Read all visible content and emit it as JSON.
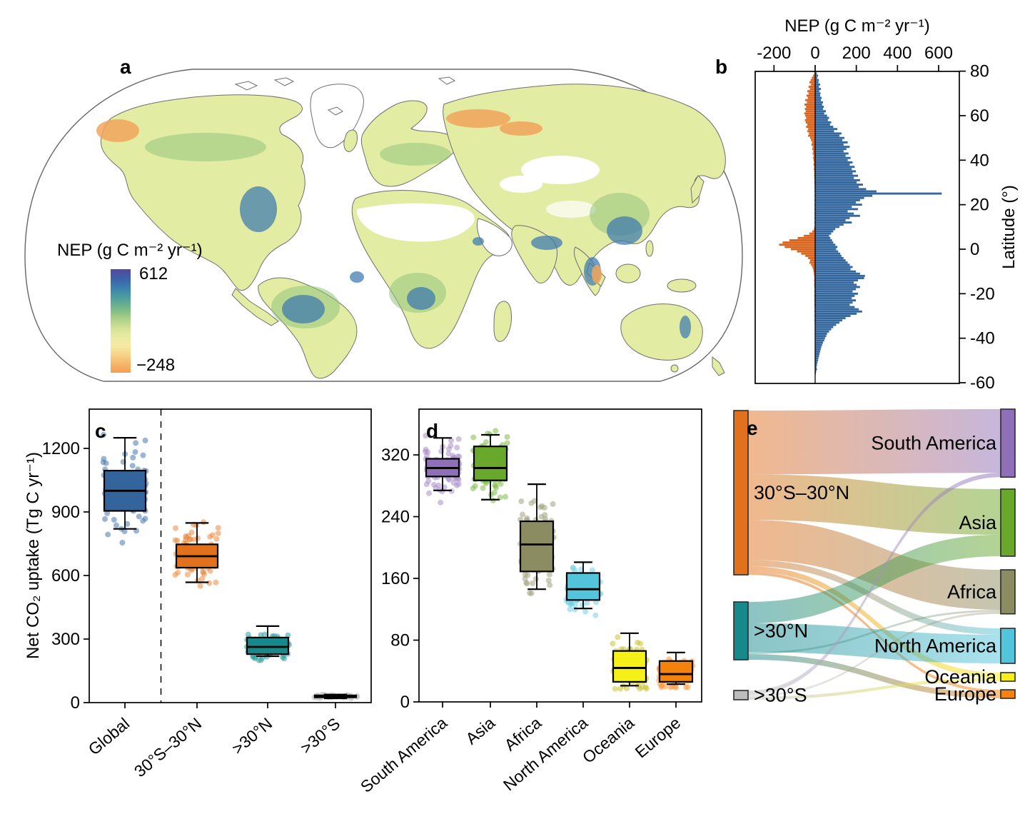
{
  "panel_letters": {
    "a": "a",
    "b": "b",
    "c": "c",
    "d": "d",
    "e": "e"
  },
  "chart_data": [
    {
      "id": "a",
      "type": "map",
      "legend": {
        "title": "NEP (g C m⁻² yr⁻¹)",
        "max_label": "612",
        "min_label": "−248",
        "gradient_top_to_bottom": [
          "#55489d",
          "#3e5fa9",
          "#3a7cb0",
          "#4797a4",
          "#63ad90",
          "#8ac183",
          "#b4d48b",
          "#d8e49a",
          "#eceba4",
          "#f5e8a2",
          "#f6d186",
          "#f6b568",
          "#f49e55"
        ]
      }
    },
    {
      "id": "b",
      "type": "bar",
      "title": "NEP (g C m⁻² yr⁻¹)",
      "ylabel": "Latitude (°)",
      "xticks": [
        "-200",
        "0",
        "200",
        "400",
        "600"
      ],
      "xtick_values": [
        -200,
        0,
        200,
        400,
        600
      ],
      "yticks": [
        "80",
        "60",
        "40",
        "20",
        "0",
        "-20",
        "-40",
        "-60"
      ],
      "ytick_values": [
        80,
        60,
        40,
        20,
        0,
        -20,
        -40,
        -60
      ],
      "xlim": [
        -291,
        700
      ],
      "ylim": [
        -60,
        80
      ],
      "positive_color": "#33679e",
      "negative_color": "#d9641e",
      "profile": [
        [
          80,
          0,
          4
        ],
        [
          79,
          -4,
          8
        ],
        [
          78,
          -10,
          14
        ],
        [
          77,
          -16,
          10
        ],
        [
          76,
          -22,
          18
        ],
        [
          75,
          -28,
          16
        ],
        [
          74,
          -20,
          24
        ],
        [
          73,
          -32,
          18
        ],
        [
          72,
          -26,
          28
        ],
        [
          71,
          -38,
          20
        ],
        [
          70,
          -32,
          26
        ],
        [
          69,
          -42,
          24
        ],
        [
          68,
          -36,
          32
        ],
        [
          67,
          -48,
          28
        ],
        [
          66,
          -40,
          38
        ],
        [
          65,
          -52,
          34
        ],
        [
          64,
          -44,
          42
        ],
        [
          63,
          -50,
          38
        ],
        [
          62,
          -46,
          52
        ],
        [
          61,
          -53,
          44
        ],
        [
          60,
          -48,
          58
        ],
        [
          59,
          -44,
          68
        ],
        [
          58,
          -50,
          62
        ],
        [
          57,
          -46,
          78
        ],
        [
          56,
          -38,
          72
        ],
        [
          55,
          -44,
          88
        ],
        [
          54,
          -34,
          108
        ],
        [
          53,
          -38,
          92
        ],
        [
          52,
          -30,
          128
        ],
        [
          51,
          -34,
          118
        ],
        [
          50,
          -24,
          142
        ],
        [
          49,
          -20,
          132
        ],
        [
          48,
          -15,
          158
        ],
        [
          47,
          -18,
          138
        ],
        [
          46,
          -12,
          168
        ],
        [
          45,
          -14,
          152
        ],
        [
          44,
          -10,
          138
        ],
        [
          43,
          -12,
          162
        ],
        [
          42,
          -8,
          148
        ],
        [
          41,
          -10,
          172
        ],
        [
          40,
          -8,
          158
        ],
        [
          39,
          -6,
          182
        ],
        [
          38,
          -8,
          168
        ],
        [
          37,
          -5,
          192
        ],
        [
          36,
          -6,
          178
        ],
        [
          35,
          -5,
          198
        ],
        [
          34,
          -4,
          182
        ],
        [
          33,
          -5,
          208
        ],
        [
          32,
          -4,
          188
        ],
        [
          31,
          -3,
          218
        ],
        [
          30,
          -4,
          202
        ],
        [
          29,
          -3,
          232
        ],
        [
          28,
          -3,
          212
        ],
        [
          27,
          -2,
          248
        ],
        [
          26,
          -3,
          298
        ],
        [
          25,
          -2,
          615
        ],
        [
          24,
          -3,
          278
        ],
        [
          23,
          -2,
          238
        ],
        [
          22,
          -3,
          218
        ],
        [
          21,
          -2,
          198
        ],
        [
          20,
          -3,
          228
        ],
        [
          19,
          -2,
          178
        ],
        [
          18,
          -3,
          208
        ],
        [
          17,
          -2,
          158
        ],
        [
          16,
          -3,
          188
        ],
        [
          15,
          -2,
          218
        ],
        [
          14,
          -3,
          168
        ],
        [
          13,
          -2,
          148
        ],
        [
          12,
          -3,
          178
        ],
        [
          11,
          -2,
          138
        ],
        [
          10,
          -4,
          118
        ],
        [
          9,
          -6,
          98
        ],
        [
          8,
          -14,
          88
        ],
        [
          7,
          -28,
          78
        ],
        [
          6,
          -55,
          68
        ],
        [
          5,
          -85,
          74
        ],
        [
          4,
          -125,
          82
        ],
        [
          3,
          -158,
          88
        ],
        [
          2,
          -175,
          98
        ],
        [
          1,
          -148,
          108
        ],
        [
          0,
          -118,
          102
        ],
        [
          -1,
          -88,
          112
        ],
        [
          -2,
          -68,
          122
        ],
        [
          -3,
          -48,
          128
        ],
        [
          -4,
          -34,
          138
        ],
        [
          -5,
          -24,
          148
        ],
        [
          -6,
          -28,
          158
        ],
        [
          -7,
          -20,
          168
        ],
        [
          -8,
          -14,
          182
        ],
        [
          -9,
          -10,
          172
        ],
        [
          -10,
          -8,
          198
        ],
        [
          -11,
          -6,
          218
        ],
        [
          -12,
          -5,
          242
        ],
        [
          -13,
          -4,
          238
        ],
        [
          -14,
          -5,
          208
        ],
        [
          -15,
          -4,
          188
        ],
        [
          -16,
          -5,
          202
        ],
        [
          -17,
          -4,
          218
        ],
        [
          -18,
          -3,
          198
        ],
        [
          -19,
          -4,
          182
        ],
        [
          -20,
          -3,
          208
        ],
        [
          -21,
          -4,
          192
        ],
        [
          -22,
          -3,
          178
        ],
        [
          -23,
          -4,
          198
        ],
        [
          -24,
          -3,
          182
        ],
        [
          -25,
          -4,
          168
        ],
        [
          -26,
          -3,
          192
        ],
        [
          -27,
          -2,
          212
        ],
        [
          -28,
          -3,
          228
        ],
        [
          -29,
          -2,
          202
        ],
        [
          -30,
          -3,
          172
        ],
        [
          -31,
          -2,
          148
        ],
        [
          -32,
          -3,
          132
        ],
        [
          -33,
          -2,
          118
        ],
        [
          -34,
          -2,
          102
        ],
        [
          -35,
          -1,
          88
        ],
        [
          -36,
          -2,
          78
        ],
        [
          -37,
          -1,
          68
        ],
        [
          -38,
          -2,
          58
        ],
        [
          -39,
          -1,
          54
        ],
        [
          -40,
          -1,
          48
        ],
        [
          -41,
          -1,
          44
        ],
        [
          -42,
          -1,
          38
        ],
        [
          -43,
          -1,
          34
        ],
        [
          -44,
          -1,
          30
        ],
        [
          -45,
          -1,
          27
        ],
        [
          -46,
          -1,
          24
        ],
        [
          -47,
          -1,
          21
        ],
        [
          -48,
          -1,
          19
        ],
        [
          -49,
          -1,
          16
        ],
        [
          -50,
          -1,
          14
        ],
        [
          -51,
          -1,
          11
        ],
        [
          -52,
          -1,
          9
        ],
        [
          -53,
          -1,
          7
        ],
        [
          -54,
          -1,
          9
        ],
        [
          -55,
          -1,
          5
        ],
        [
          -56,
          0,
          3
        ]
      ]
    },
    {
      "id": "c",
      "type": "box",
      "ylabel": "Net CO₂ uptake (Tg C yr⁻¹)",
      "yticks": [
        "0",
        "300",
        "600",
        "900",
        "1200"
      ],
      "ytick_values": [
        0,
        300,
        600,
        900,
        1200
      ],
      "ylim": [
        0,
        1385
      ],
      "categories": [
        "Global",
        "30°S–30°N",
        ">30°N",
        ">30°S"
      ],
      "divider_after_index": 0,
      "series": [
        {
          "name": "Global",
          "color": "#33659c",
          "point_color": "#4878ae",
          "whislo": 820,
          "q1": 905,
          "med": 1000,
          "q3": 1095,
          "whishi": 1250,
          "pt_lo": 755,
          "pt_hi": 1290,
          "n": 85
        },
        {
          "name": "30°S–30°N",
          "color": "#e2711d",
          "point_color": "#e88a42",
          "whislo": 568,
          "q1": 637,
          "med": 691,
          "q3": 747,
          "whishi": 848,
          "pt_lo": 532,
          "pt_hi": 872,
          "n": 85
        },
        {
          "name": ">30°N",
          "color": "#17898b",
          "point_color": "#2f9fa0",
          "whislo": 219,
          "q1": 229,
          "med": 263,
          "q3": 307,
          "whishi": 361,
          "pt_lo": 200,
          "pt_hi": 388,
          "n": 85
        },
        {
          "name": ">30°S",
          "color": "#000000",
          "point_color": "#c4c4c4",
          "whislo": 20,
          "q1": 25,
          "med": 29,
          "q3": 34,
          "whishi": 38,
          "pt_lo": 16,
          "pt_hi": 44,
          "n": 60
        }
      ]
    },
    {
      "id": "d",
      "type": "box",
      "yticks": [
        "0",
        "80",
        "160",
        "240",
        "320"
      ],
      "ytick_values": [
        0,
        80,
        160,
        240,
        320
      ],
      "ylim": [
        0,
        379
      ],
      "categories": [
        "South America",
        "Asia",
        "Africa",
        "North America",
        "Oceania",
        "Europe"
      ],
      "series": [
        {
          "name": "South America",
          "color": "#8e6fb8",
          "point_color": "#a98fc9",
          "whislo": 274,
          "q1": 292,
          "med": 303,
          "q3": 315,
          "whishi": 342,
          "pt_lo": 243,
          "pt_hi": 352,
          "n": 90
        },
        {
          "name": "Asia",
          "color": "#69a82a",
          "point_color": "#82bb4d",
          "whislo": 262,
          "q1": 287,
          "med": 303,
          "q3": 331,
          "whishi": 346,
          "pt_lo": 240,
          "pt_hi": 356,
          "n": 90
        },
        {
          "name": "Africa",
          "color": "#8b8c62",
          "point_color": "#a3a47e",
          "whislo": 146,
          "q1": 169,
          "med": 204,
          "q3": 234,
          "whishi": 282,
          "pt_lo": 130,
          "pt_hi": 292,
          "n": 90
        },
        {
          "name": "North America",
          "color": "#52c5dc",
          "point_color": "#74d2e4",
          "whislo": 121,
          "q1": 132,
          "med": 146,
          "q3": 167,
          "whishi": 181,
          "pt_lo": 108,
          "pt_hi": 192,
          "n": 90
        },
        {
          "name": "Oceania",
          "color": "#f5f118",
          "point_color": "#c9c22f",
          "whislo": 21,
          "q1": 26,
          "med": 44,
          "q3": 66,
          "whishi": 89,
          "pt_lo": 17,
          "pt_hi": 95,
          "n": 90
        },
        {
          "name": "Europe",
          "color": "#f5820d",
          "point_color": "#f79b43",
          "whislo": 23,
          "q1": 26,
          "med": 36,
          "q3": 53,
          "whishi": 64,
          "pt_lo": 19,
          "pt_hi": 70,
          "n": 90
        }
      ]
    },
    {
      "id": "e",
      "type": "sankey",
      "left_nodes": [
        {
          "name": "30°S–30°N",
          "color": "#e2711d"
        },
        {
          "name": ">30°N",
          "color": "#17898b"
        },
        {
          "name": ">30°S",
          "color": "#bcbcbc"
        }
      ],
      "right_nodes": [
        {
          "name": "South America",
          "color": "#8e6fb8"
        },
        {
          "name": "Asia",
          "color": "#69a82a"
        },
        {
          "name": "Africa",
          "color": "#8b8c62"
        },
        {
          "name": "North America",
          "color": "#52c5dc"
        },
        {
          "name": "Oceania",
          "color": "#f5f118"
        },
        {
          "name": "Europe",
          "color": "#f5820d"
        }
      ],
      "flows": [
        {
          "from": "30°S–30°N",
          "to": "South America",
          "value": 282
        },
        {
          "from": "30°S–30°N",
          "to": "Asia",
          "value": 202
        },
        {
          "from": "30°S–30°N",
          "to": "Africa",
          "value": 177
        },
        {
          "from": "30°S–30°N",
          "to": "North America",
          "value": 28
        },
        {
          "from": "30°S–30°N",
          "to": "Oceania",
          "value": 25
        },
        {
          "from": "30°S–30°N",
          "to": "Europe",
          "value": 13
        },
        {
          "from": ">30°N",
          "to": "Asia",
          "value": 95
        },
        {
          "from": ">30°N",
          "to": "North America",
          "value": 127
        },
        {
          "from": ">30°N",
          "to": "Africa",
          "value": 9
        },
        {
          "from": ">30°N",
          "to": "Europe",
          "value": 25
        },
        {
          "from": ">30°S",
          "to": "South America",
          "value": 19
        },
        {
          "from": ">30°S",
          "to": "Africa",
          "value": 9
        },
        {
          "from": ">30°S",
          "to": "Oceania",
          "value": 13
        }
      ]
    }
  ]
}
